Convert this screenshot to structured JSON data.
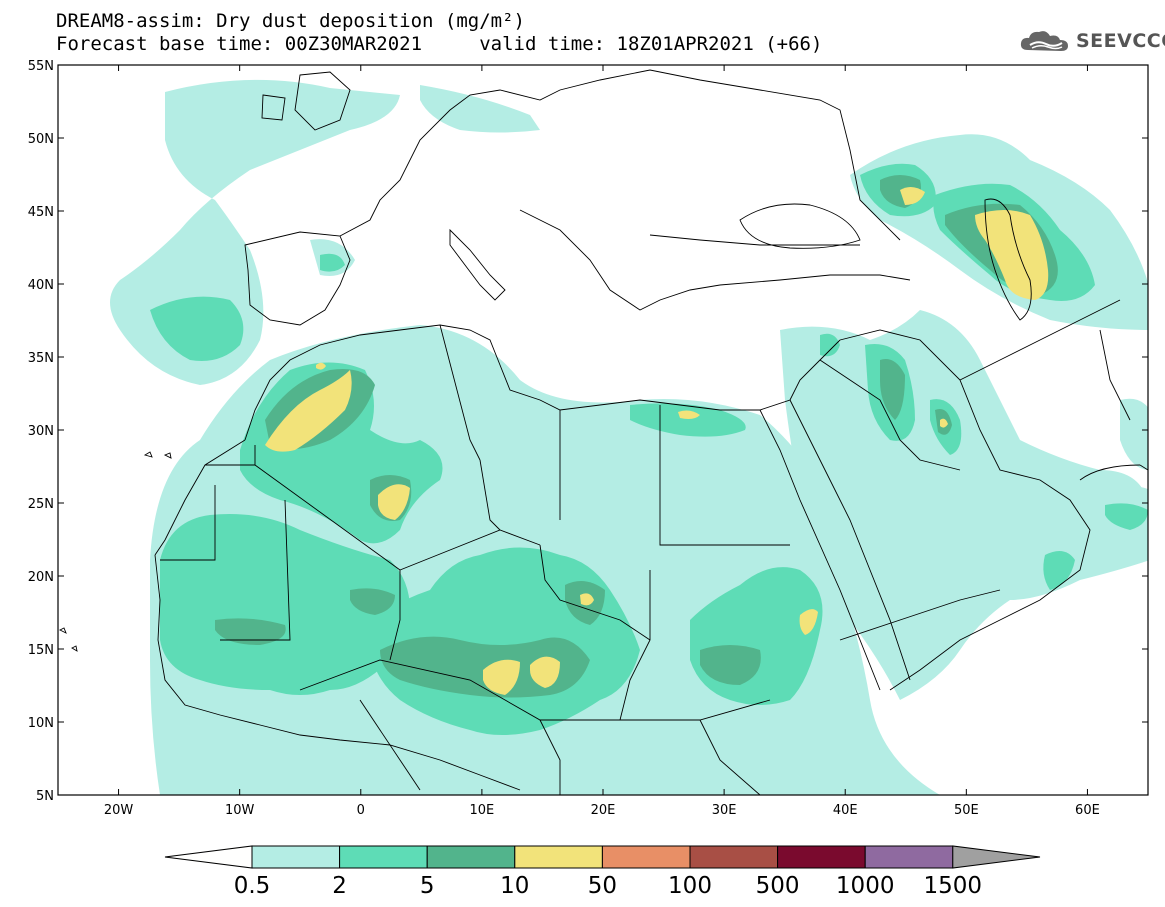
{
  "header": {
    "title_line1": "DREAM8-assim: Dry dust deposition (mg/m²)",
    "title_line2": "Forecast base time: 00Z30MAR2021     valid time: 18Z01APR2021 (+66)"
  },
  "logo": {
    "icon": "cloud-icon",
    "text": "SEEVCCC"
  },
  "map": {
    "lon_range": [
      -25,
      65
    ],
    "lat_range": [
      5,
      55
    ],
    "lat_ticks": [
      "5N",
      "10N",
      "15N",
      "20N",
      "25N",
      "30N",
      "35N",
      "40N",
      "45N",
      "50N",
      "55N"
    ],
    "lon_ticks": [
      "20W",
      "10W",
      "0",
      "10E",
      "20E",
      "30E",
      "40E",
      "50E",
      "60E"
    ]
  },
  "legend": {
    "labels": [
      "0.5",
      "2",
      "5",
      "10",
      "50",
      "100",
      "500",
      "1000",
      "1500"
    ],
    "colors": [
      "#fffffe",
      "#b4ede4",
      "#5edcb6",
      "#52b48c",
      "#f2e37a",
      "#e88f66",
      "#a84f45",
      "#7a0a2e",
      "#8f6aa0",
      "#a0a0a0"
    ]
  }
}
